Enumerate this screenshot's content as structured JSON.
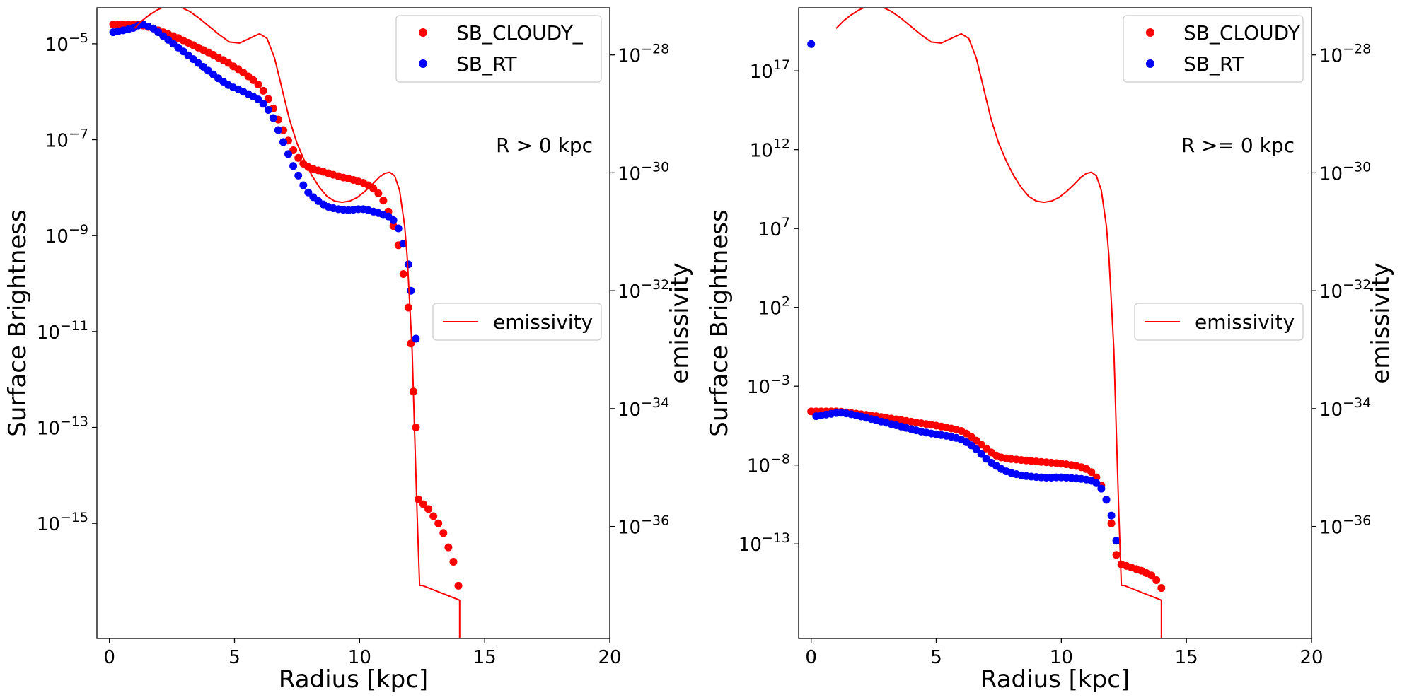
{
  "chart_data": [
    {
      "type": "scatter",
      "xlabel": "Radius [kpc]",
      "ylabel": "Surface Brightness",
      "y2label": "emissivity",
      "xlim": [
        -0.5,
        20
      ],
      "xticks": [
        0,
        5,
        10,
        15,
        20
      ],
      "y_log_lim": [
        -17.4,
        -4.25
      ],
      "y_ticks_exp": [
        -5,
        -7,
        -9,
        -11,
        -13,
        -15
      ],
      "y2_log_lim": [
        -37.9,
        -27.2
      ],
      "y2_ticks_exp": [
        -28,
        -30,
        -32,
        -34,
        -36
      ],
      "annotation": "R > 0 kpc",
      "legend_upper": [
        "SB_CLOUDY_",
        "SB_RT"
      ],
      "legend_lower": "emissivity",
      "legend_placement": "upper-right and center-right",
      "series": [
        {
          "name": "SB_CLOUDY_",
          "color": "#ff0000",
          "x": [
            0.15,
            0.35,
            0.55,
            0.75,
            0.95,
            1.15,
            1.35,
            1.55,
            1.75,
            1.95,
            2.15,
            2.35,
            2.55,
            2.75,
            2.95,
            3.15,
            3.35,
            3.55,
            3.75,
            3.95,
            4.15,
            4.35,
            4.55,
            4.75,
            4.95,
            5.15,
            5.35,
            5.55,
            5.75,
            5.95,
            6.15,
            6.35,
            6.55,
            6.75,
            6.95,
            7.15,
            7.35,
            7.55,
            7.75,
            7.95,
            8.15,
            8.35,
            8.55,
            8.75,
            8.95,
            9.15,
            9.35,
            9.55,
            9.75,
            9.95,
            10.15,
            10.35,
            10.55,
            10.75,
            10.95,
            11.15,
            11.35,
            11.55,
            11.75,
            11.95,
            12.05,
            12.15,
            12.25,
            12.35,
            12.55,
            12.75,
            12.95,
            13.15,
            13.35,
            13.55,
            13.75,
            13.95
          ],
          "y_exp": [
            -4.6,
            -4.6,
            -4.6,
            -4.6,
            -4.6,
            -4.6,
            -4.62,
            -4.65,
            -4.68,
            -4.72,
            -4.76,
            -4.8,
            -4.84,
            -4.88,
            -4.93,
            -4.98,
            -5.03,
            -5.08,
            -5.13,
            -5.18,
            -5.23,
            -5.29,
            -5.34,
            -5.4,
            -5.47,
            -5.53,
            -5.6,
            -5.68,
            -5.76,
            -5.85,
            -5.98,
            -6.15,
            -6.35,
            -6.58,
            -6.8,
            -7.02,
            -7.22,
            -7.38,
            -7.5,
            -7.57,
            -7.61,
            -7.64,
            -7.67,
            -7.7,
            -7.73,
            -7.76,
            -7.79,
            -7.81,
            -7.84,
            -7.87,
            -7.9,
            -7.95,
            -8.02,
            -8.12,
            -8.27,
            -8.5,
            -8.8,
            -9.2,
            -9.8,
            -10.5,
            -11.25,
            -12.25,
            -13.0,
            -14.5,
            -14.6,
            -14.7,
            -14.85,
            -15.0,
            -15.2,
            -15.5,
            -15.8,
            -16.3
          ]
        },
        {
          "name": "SB_RT",
          "color": "#0000ff",
          "x": [
            0.15,
            0.35,
            0.55,
            0.75,
            0.95,
            1.15,
            1.35,
            1.55,
            1.75,
            1.95,
            2.15,
            2.35,
            2.55,
            2.75,
            2.95,
            3.15,
            3.35,
            3.55,
            3.75,
            3.95,
            4.15,
            4.35,
            4.55,
            4.75,
            4.95,
            5.15,
            5.35,
            5.55,
            5.75,
            5.95,
            6.15,
            6.35,
            6.55,
            6.75,
            6.95,
            7.15,
            7.35,
            7.55,
            7.75,
            7.95,
            8.15,
            8.35,
            8.55,
            8.75,
            8.95,
            9.15,
            9.35,
            9.55,
            9.75,
            9.95,
            10.15,
            10.35,
            10.55,
            10.75,
            10.95,
            11.15,
            11.35,
            11.55,
            11.75,
            11.95,
            12.05,
            12.25
          ],
          "y_exp": [
            -4.76,
            -4.74,
            -4.72,
            -4.7,
            -4.67,
            -4.62,
            -4.6,
            -4.64,
            -4.68,
            -4.76,
            -4.84,
            -4.92,
            -5.0,
            -5.08,
            -5.16,
            -5.24,
            -5.32,
            -5.4,
            -5.48,
            -5.56,
            -5.64,
            -5.72,
            -5.79,
            -5.86,
            -5.91,
            -5.95,
            -6.0,
            -6.05,
            -6.1,
            -6.16,
            -6.25,
            -6.38,
            -6.55,
            -6.8,
            -7.05,
            -7.3,
            -7.55,
            -7.75,
            -7.95,
            -8.1,
            -8.2,
            -8.28,
            -8.35,
            -8.4,
            -8.43,
            -8.45,
            -8.46,
            -8.47,
            -8.46,
            -8.45,
            -8.45,
            -8.47,
            -8.5,
            -8.53,
            -8.57,
            -8.6,
            -8.68,
            -8.85,
            -9.17,
            -9.6,
            -10.15,
            -11.15
          ]
        },
        {
          "name": "emissivity",
          "color": "#ff0000",
          "axis": "y2",
          "x": [
            1.0,
            1.3,
            1.6,
            1.9,
            2.2,
            2.5,
            2.8,
            3.2,
            3.6,
            4.0,
            4.4,
            4.8,
            5.2,
            5.6,
            6.0,
            6.3,
            6.6,
            6.8,
            7.0,
            7.2,
            7.5,
            7.8,
            8.1,
            8.4,
            8.7,
            9.0,
            9.3,
            9.6,
            9.9,
            10.2,
            10.5,
            10.8,
            11.0,
            11.2,
            11.4,
            11.6,
            11.8,
            11.9,
            12.0,
            12.1,
            12.2,
            12.3,
            12.4,
            12.5,
            14.0,
            14.0
          ],
          "y_exp": [
            -27.55,
            -27.42,
            -27.32,
            -27.24,
            -27.18,
            -27.16,
            -27.18,
            -27.26,
            -27.38,
            -27.52,
            -27.66,
            -27.78,
            -27.8,
            -27.72,
            -27.64,
            -27.72,
            -28.05,
            -28.4,
            -28.75,
            -29.1,
            -29.5,
            -29.8,
            -30.05,
            -30.25,
            -30.4,
            -30.48,
            -30.5,
            -30.48,
            -30.42,
            -30.32,
            -30.2,
            -30.07,
            -30.01,
            -29.99,
            -30.05,
            -30.3,
            -30.9,
            -31.4,
            -32.2,
            -33.0,
            -34.4,
            -35.8,
            -37.0,
            -37.0,
            -37.25,
            -37.9
          ]
        }
      ]
    },
    {
      "type": "scatter",
      "xlabel": "Radius [kpc]",
      "ylabel": "Surface Brightness",
      "y2label": "emissivity",
      "xlim": [
        -0.5,
        20
      ],
      "xticks": [
        0,
        5,
        10,
        15,
        20
      ],
      "y_log_lim": [
        -19.0,
        21.0
      ],
      "y_ticks_exp": [
        17,
        12,
        7,
        2,
        -3,
        -8,
        -13
      ],
      "y2_log_lim": [
        -37.9,
        -27.2
      ],
      "y2_ticks_exp": [
        -28,
        -30,
        -32,
        -34,
        -36
      ],
      "annotation": "R >= 0 kpc",
      "legend_upper": [
        "SB_CLOUDY",
        "SB_RT"
      ],
      "legend_lower": "emissivity",
      "legend_placement": "upper-right and center-right",
      "series": [
        {
          "name": "SB_CLOUDY",
          "color": "#ff0000",
          "x": [
            0.0,
            0.2,
            0.4,
            0.6,
            0.8,
            1.0,
            1.2,
            1.4,
            1.6,
            1.8,
            2.0,
            2.2,
            2.4,
            2.6,
            2.8,
            3.0,
            3.2,
            3.4,
            3.6,
            3.8,
            4.0,
            4.2,
            4.4,
            4.6,
            4.8,
            5.0,
            5.2,
            5.4,
            5.6,
            5.8,
            6.0,
            6.2,
            6.4,
            6.6,
            6.8,
            7.0,
            7.2,
            7.4,
            7.6,
            7.8,
            8.0,
            8.2,
            8.4,
            8.6,
            8.8,
            9.0,
            9.2,
            9.4,
            9.6,
            9.8,
            10.0,
            10.2,
            10.4,
            10.6,
            10.8,
            11.0,
            11.2,
            11.4,
            11.6,
            11.8,
            12.0,
            12.2,
            12.4,
            12.6,
            12.8,
            13.0,
            13.2,
            13.4,
            13.6,
            13.8,
            14.0
          ],
          "y_exp": [
            -4.6,
            -4.6,
            -4.6,
            -4.6,
            -4.6,
            -4.6,
            -4.62,
            -4.66,
            -4.7,
            -4.74,
            -4.78,
            -4.82,
            -4.86,
            -4.9,
            -4.95,
            -5.0,
            -5.05,
            -5.1,
            -5.15,
            -5.2,
            -5.25,
            -5.3,
            -5.35,
            -5.4,
            -5.45,
            -5.5,
            -5.56,
            -5.62,
            -5.68,
            -5.76,
            -5.84,
            -6.0,
            -6.2,
            -6.45,
            -6.7,
            -6.95,
            -7.2,
            -7.4,
            -7.52,
            -7.58,
            -7.62,
            -7.65,
            -7.68,
            -7.71,
            -7.74,
            -7.77,
            -7.8,
            -7.82,
            -7.85,
            -7.88,
            -7.91,
            -7.95,
            -8.0,
            -8.06,
            -8.14,
            -8.25,
            -8.45,
            -8.78,
            -9.3,
            -10.2,
            -11.7,
            -13.7,
            -14.3,
            -14.4,
            -14.5,
            -14.6,
            -14.7,
            -14.85,
            -15.0,
            -15.3,
            -15.8
          ]
        },
        {
          "name": "SB_RT",
          "color": "#0000ff",
          "x": [
            0.0,
            0.2,
            0.4,
            0.6,
            0.8,
            1.0,
            1.2,
            1.4,
            1.6,
            1.8,
            2.0,
            2.2,
            2.4,
            2.6,
            2.8,
            3.0,
            3.2,
            3.4,
            3.6,
            3.8,
            4.0,
            4.2,
            4.4,
            4.6,
            4.8,
            5.0,
            5.2,
            5.4,
            5.6,
            5.8,
            6.0,
            6.2,
            6.4,
            6.6,
            6.8,
            7.0,
            7.2,
            7.4,
            7.6,
            7.8,
            8.0,
            8.2,
            8.4,
            8.6,
            8.8,
            9.0,
            9.2,
            9.4,
            9.6,
            9.8,
            10.0,
            10.2,
            10.4,
            10.6,
            10.8,
            11.0,
            11.2,
            11.4,
            11.6,
            11.8,
            12.0,
            12.2
          ],
          "y_exp": [
            18.7,
            -4.9,
            -4.85,
            -4.8,
            -4.75,
            -4.7,
            -4.68,
            -4.72,
            -4.78,
            -4.85,
            -4.92,
            -5.0,
            -5.08,
            -5.16,
            -5.24,
            -5.32,
            -5.4,
            -5.48,
            -5.56,
            -5.64,
            -5.72,
            -5.8,
            -5.88,
            -5.94,
            -6.0,
            -6.05,
            -6.1,
            -6.15,
            -6.2,
            -6.28,
            -6.38,
            -6.55,
            -6.75,
            -7.0,
            -7.3,
            -7.6,
            -7.85,
            -8.05,
            -8.25,
            -8.4,
            -8.5,
            -8.58,
            -8.65,
            -8.7,
            -8.73,
            -8.76,
            -8.78,
            -8.8,
            -8.8,
            -8.78,
            -8.78,
            -8.8,
            -8.82,
            -8.85,
            -8.88,
            -8.92,
            -9.0,
            -9.15,
            -9.5,
            -10.2,
            -11.2,
            -12.8
          ]
        },
        {
          "name": "emissivity",
          "color": "#ff0000",
          "axis": "y2",
          "x": [
            1.0,
            1.3,
            1.6,
            1.9,
            2.2,
            2.5,
            2.8,
            3.2,
            3.6,
            4.0,
            4.4,
            4.8,
            5.2,
            5.6,
            6.0,
            6.3,
            6.6,
            6.8,
            7.0,
            7.2,
            7.5,
            7.8,
            8.1,
            8.4,
            8.7,
            9.0,
            9.3,
            9.6,
            9.9,
            10.2,
            10.5,
            10.8,
            11.0,
            11.2,
            11.4,
            11.6,
            11.8,
            11.9,
            12.0,
            12.1,
            12.2,
            12.3,
            12.4,
            12.5,
            14.0,
            14.0
          ],
          "y_exp": [
            -27.55,
            -27.42,
            -27.32,
            -27.24,
            -27.18,
            -27.16,
            -27.18,
            -27.26,
            -27.38,
            -27.52,
            -27.66,
            -27.78,
            -27.8,
            -27.72,
            -27.64,
            -27.72,
            -28.05,
            -28.4,
            -28.75,
            -29.1,
            -29.5,
            -29.8,
            -30.05,
            -30.25,
            -30.4,
            -30.48,
            -30.5,
            -30.48,
            -30.42,
            -30.32,
            -30.2,
            -30.07,
            -30.01,
            -29.99,
            -30.05,
            -30.3,
            -30.9,
            -31.4,
            -32.2,
            -33.0,
            -34.4,
            -35.8,
            -37.0,
            -37.0,
            -37.25,
            -37.9
          ]
        }
      ]
    }
  ]
}
